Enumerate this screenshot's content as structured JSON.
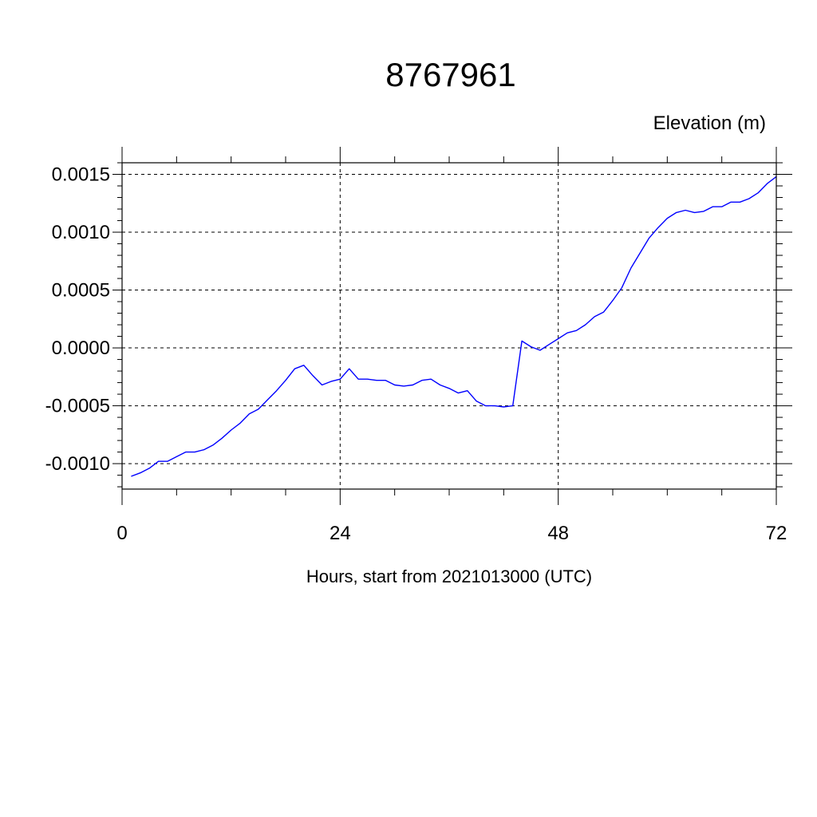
{
  "chart_data": {
    "type": "line",
    "title": "8767961",
    "ylabel": "Elevation (m)",
    "xlabel": "Hours, start from 2021013000 (UTC)",
    "xlim": [
      0,
      72
    ],
    "ylim": [
      -0.00122,
      0.0016
    ],
    "x_ticks": [
      0,
      24,
      48,
      72
    ],
    "x_tick_labels": [
      "0",
      "24",
      "48",
      "72"
    ],
    "y_ticks": [
      -0.001,
      -0.0005,
      0.0,
      0.0005,
      0.001,
      0.0015
    ],
    "y_tick_labels": [
      "-0.0010",
      "-0.0005",
      "0.0000",
      "0.0005",
      "0.0010",
      "0.0015"
    ],
    "grid": true,
    "series": [
      {
        "color": "#0000ff",
        "x": [
          1,
          2,
          3,
          4,
          5,
          6,
          7,
          8,
          9,
          10,
          11,
          12,
          13,
          14,
          15,
          16,
          17,
          18,
          19,
          20,
          21,
          22,
          23,
          24,
          25,
          26,
          27,
          28,
          29,
          30,
          31,
          32,
          33,
          34,
          35,
          36,
          37,
          38,
          39,
          40,
          41,
          42,
          43,
          44,
          45,
          46,
          47,
          48,
          49,
          50,
          51,
          52,
          53,
          54,
          55,
          56,
          57,
          58,
          59,
          60,
          61,
          62,
          63,
          64,
          65,
          66,
          67,
          68,
          69,
          70,
          71,
          72
        ],
        "values": [
          -0.00111,
          -0.00108,
          -0.00104,
          -0.00098,
          -0.00098,
          -0.00094,
          -0.0009,
          -0.0009,
          -0.00088,
          -0.00084,
          -0.00078,
          -0.00071,
          -0.00065,
          -0.00057,
          -0.00053,
          -0.00045,
          -0.00037,
          -0.00028,
          -0.00018,
          -0.00015,
          -0.00024,
          -0.00032,
          -0.00029,
          -0.00027,
          -0.00018,
          -0.00027,
          -0.00027,
          -0.00028,
          -0.00028,
          -0.00032,
          -0.00033,
          -0.00032,
          -0.00028,
          -0.00027,
          -0.00032,
          -0.00035,
          -0.00039,
          -0.00037,
          -0.00046,
          -0.0005,
          -0.0005,
          -0.00051,
          -0.0005,
          6e-05,
          1e-05,
          -2e-05,
          3e-05,
          8e-05,
          0.00013,
          0.00015,
          0.0002,
          0.00027,
          0.00031,
          0.00041,
          0.00052,
          0.00069,
          0.00082,
          0.00095,
          0.00104,
          0.00112,
          0.00117,
          0.00119,
          0.00117,
          0.00118,
          0.00122,
          0.00122,
          0.00126,
          0.00126,
          0.00129,
          0.00134,
          0.00142,
          0.00148
        ]
      }
    ]
  }
}
